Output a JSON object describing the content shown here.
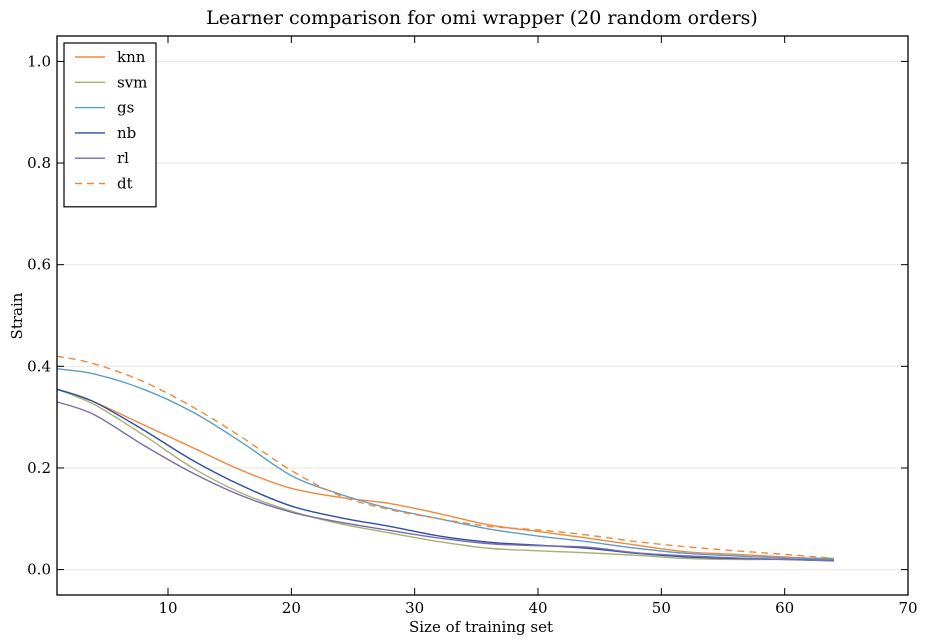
{
  "chart_data": {
    "type": "line",
    "title": "Learner comparison for omi wrapper (20 random orders)",
    "xlabel": "Size of training set",
    "ylabel": "Strain",
    "xlim": [
      1,
      70
    ],
    "ylim": [
      -0.05,
      1.05
    ],
    "xticks": [
      10,
      20,
      30,
      40,
      50,
      60,
      70
    ],
    "yticks": [
      0.0,
      0.2,
      0.4,
      0.6,
      0.8,
      1.0
    ],
    "xtick_labels": [
      "10",
      "20",
      "30",
      "40",
      "50",
      "60",
      "70"
    ],
    "ytick_labels": [
      "0.0",
      "0.2",
      "0.4",
      "0.6",
      "0.8",
      "1.0"
    ],
    "grid": "horizontal",
    "legend_position": "top-left",
    "x": [
      1,
      4,
      8,
      12,
      16,
      20,
      24,
      28,
      32,
      36,
      40,
      44,
      48,
      52,
      56,
      60,
      64
    ],
    "series": [
      {
        "name": "knn",
        "color": "#f0883c",
        "dash": false,
        "values": [
          0.355,
          0.33,
          0.285,
          0.24,
          0.195,
          0.16,
          0.142,
          0.13,
          0.11,
          0.088,
          0.075,
          0.062,
          0.048,
          0.035,
          0.03,
          0.025,
          0.02
        ]
      },
      {
        "name": "svm",
        "color": "#a8b070",
        "dash": false,
        "values": [
          0.355,
          0.325,
          0.265,
          0.2,
          0.15,
          0.115,
          0.09,
          0.072,
          0.055,
          0.042,
          0.037,
          0.033,
          0.028,
          0.022,
          0.02,
          0.02,
          0.02
        ]
      },
      {
        "name": "gs",
        "color": "#5b9ec9",
        "dash": false,
        "values": [
          0.395,
          0.385,
          0.355,
          0.31,
          0.25,
          0.185,
          0.148,
          0.12,
          0.1,
          0.08,
          0.066,
          0.055,
          0.042,
          0.032,
          0.027,
          0.023,
          0.022
        ]
      },
      {
        "name": "nb",
        "color": "#2e4fa3",
        "dash": false,
        "values": [
          0.355,
          0.33,
          0.275,
          0.215,
          0.165,
          0.125,
          0.102,
          0.085,
          0.066,
          0.054,
          0.048,
          0.042,
          0.032,
          0.025,
          0.022,
          0.02,
          0.018
        ]
      },
      {
        "name": "rl",
        "color": "#7a6ab0",
        "dash": false,
        "values": [
          0.33,
          0.305,
          0.245,
          0.19,
          0.145,
          0.113,
          0.093,
          0.077,
          0.062,
          0.051,
          0.047,
          0.044,
          0.033,
          0.027,
          0.023,
          0.02,
          0.017
        ]
      },
      {
        "name": "dt",
        "color": "#f0883c",
        "dash": true,
        "values": [
          0.42,
          0.405,
          0.37,
          0.32,
          0.26,
          0.195,
          0.145,
          0.118,
          0.1,
          0.085,
          0.078,
          0.068,
          0.055,
          0.045,
          0.037,
          0.03,
          0.022
        ]
      }
    ]
  }
}
